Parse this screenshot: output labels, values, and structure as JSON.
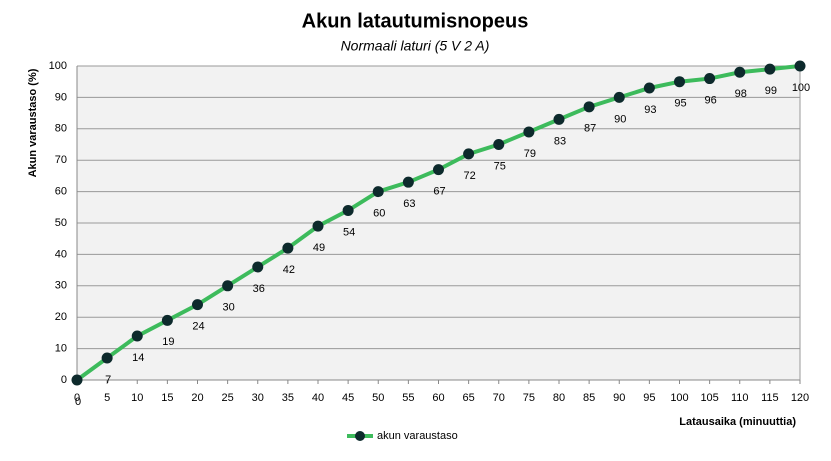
{
  "chart_data": {
    "type": "line",
    "title": "Akun latautumisnopeus",
    "subtitle": "Normaali laturi (5 V 2 A)",
    "x_label": "Latausaika  (minuuttia)",
    "y_label": "Akun varaustaso (%)",
    "x": [
      0,
      5,
      10,
      15,
      20,
      25,
      30,
      35,
      40,
      45,
      50,
      55,
      60,
      65,
      70,
      75,
      80,
      85,
      90,
      95,
      100,
      105,
      110,
      115,
      120
    ],
    "series": [
      {
        "name": "akun varaustaso",
        "color": "#3dbb5c",
        "marker_color": "#0d2a2c",
        "values": [
          0,
          7,
          14,
          19,
          24,
          30,
          36,
          42,
          49,
          54,
          60,
          63,
          67,
          72,
          75,
          79,
          83,
          87,
          90,
          93,
          95,
          96,
          98,
          99,
          100
        ]
      }
    ],
    "xlim": [
      0,
      120
    ],
    "xticks": [
      0,
      5,
      10,
      15,
      20,
      25,
      30,
      35,
      40,
      45,
      50,
      55,
      60,
      65,
      70,
      75,
      80,
      85,
      90,
      95,
      100,
      105,
      110,
      115,
      120
    ],
    "ylim": [
      0,
      100
    ],
    "yticks": [
      0,
      10,
      20,
      30,
      40,
      50,
      60,
      70,
      80,
      90,
      100
    ],
    "grid": true
  }
}
